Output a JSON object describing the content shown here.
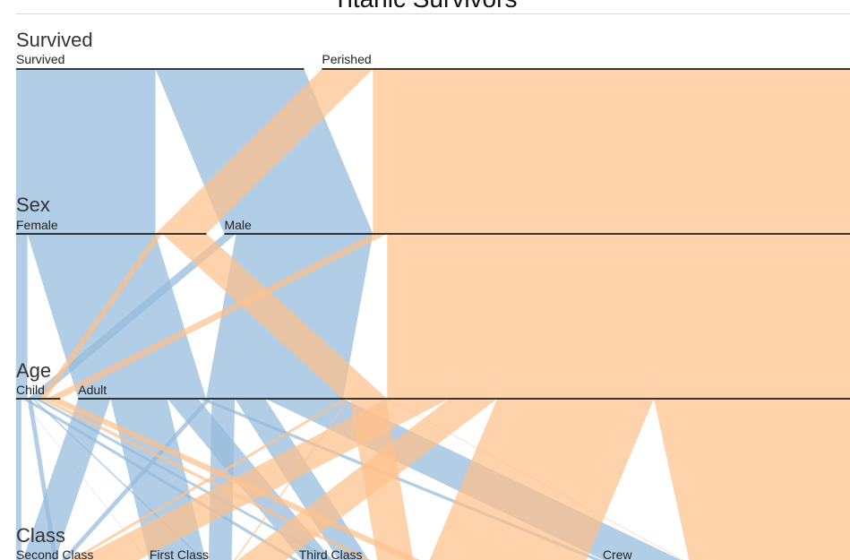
{
  "chart_data": {
    "type": "parallel-sets",
    "title": "Titanic Survivors",
    "dimensions": [
      {
        "name": "Survived",
        "categories": [
          "Survived",
          "Perished"
        ]
      },
      {
        "name": "Sex",
        "categories": [
          "Female",
          "Male"
        ]
      },
      {
        "name": "Age",
        "categories": [
          "Child",
          "Adult"
        ]
      },
      {
        "name": "Class",
        "categories": [
          "Second Class",
          "First Class",
          "Third Class",
          "Crew"
        ]
      }
    ],
    "colors": {
      "Survived": "#94bbdc",
      "Perished": "#fdc18b"
    },
    "records": [
      {
        "survived": "Survived",
        "class": "First Class",
        "sex": "Male",
        "age": "Child",
        "count": 5
      },
      {
        "survived": "Survived",
        "class": "First Class",
        "sex": "Female",
        "age": "Child",
        "count": 1
      },
      {
        "survived": "Survived",
        "class": "First Class",
        "sex": "Male",
        "age": "Adult",
        "count": 57
      },
      {
        "survived": "Survived",
        "class": "First Class",
        "sex": "Female",
        "age": "Adult",
        "count": 140
      },
      {
        "survived": "Survived",
        "class": "Second Class",
        "sex": "Male",
        "age": "Child",
        "count": 11
      },
      {
        "survived": "Survived",
        "class": "Second Class",
        "sex": "Female",
        "age": "Child",
        "count": 13
      },
      {
        "survived": "Survived",
        "class": "Second Class",
        "sex": "Male",
        "age": "Adult",
        "count": 14
      },
      {
        "survived": "Survived",
        "class": "Second Class",
        "sex": "Female",
        "age": "Adult",
        "count": 80
      },
      {
        "survived": "Survived",
        "class": "Third Class",
        "sex": "Male",
        "age": "Child",
        "count": 13
      },
      {
        "survived": "Survived",
        "class": "Third Class",
        "sex": "Female",
        "age": "Child",
        "count": 14
      },
      {
        "survived": "Survived",
        "class": "Third Class",
        "sex": "Male",
        "age": "Adult",
        "count": 75
      },
      {
        "survived": "Survived",
        "class": "Third Class",
        "sex": "Female",
        "age": "Adult",
        "count": 76
      },
      {
        "survived": "Survived",
        "class": "Crew",
        "sex": "Male",
        "age": "Adult",
        "count": 192
      },
      {
        "survived": "Survived",
        "class": "Crew",
        "sex": "Female",
        "age": "Adult",
        "count": 20
      },
      {
        "survived": "Perished",
        "class": "First Class",
        "sex": "Male",
        "age": "Adult",
        "count": 118
      },
      {
        "survived": "Perished",
        "class": "First Class",
        "sex": "Female",
        "age": "Adult",
        "count": 4
      },
      {
        "survived": "Perished",
        "class": "Second Class",
        "sex": "Male",
        "age": "Adult",
        "count": 154
      },
      {
        "survived": "Perished",
        "class": "Second Class",
        "sex": "Female",
        "age": "Adult",
        "count": 13
      },
      {
        "survived": "Perished",
        "class": "Third Class",
        "sex": "Male",
        "age": "Child",
        "count": 35
      },
      {
        "survived": "Perished",
        "class": "Third Class",
        "sex": "Female",
        "age": "Child",
        "count": 17
      },
      {
        "survived": "Perished",
        "class": "Third Class",
        "sex": "Male",
        "age": "Adult",
        "count": 387
      },
      {
        "survived": "Perished",
        "class": "Third Class",
        "sex": "Female",
        "age": "Adult",
        "count": 89
      },
      {
        "survived": "Perished",
        "class": "Crew",
        "sex": "Male",
        "age": "Adult",
        "count": 670
      },
      {
        "survived": "Perished",
        "class": "Crew",
        "sex": "Female",
        "age": "Adult",
        "count": 3
      }
    ]
  }
}
